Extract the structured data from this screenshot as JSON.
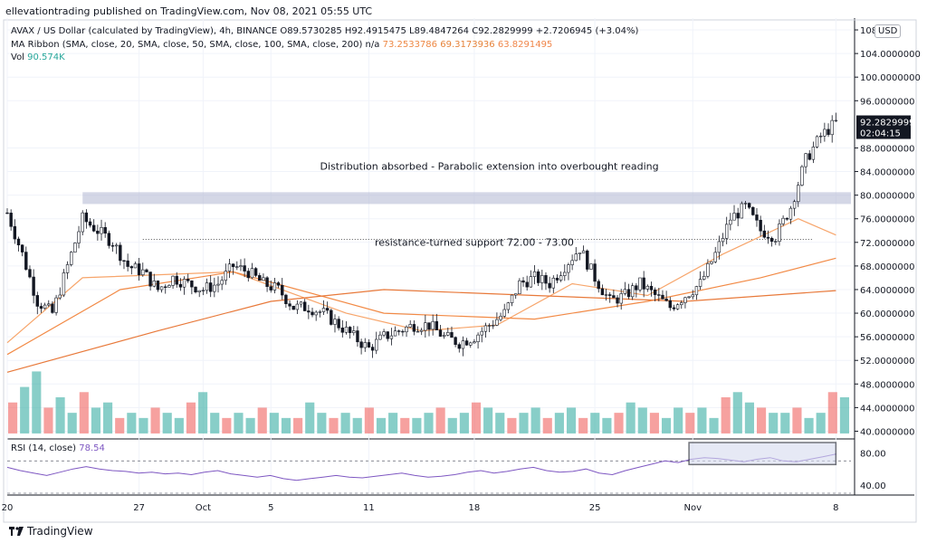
{
  "header": {
    "published_line": "ellevationtrading published on TradingView.com, Nov 08, 2021 05:55 UTC"
  },
  "legend": {
    "symbol_line": "AVAX / US Dollar (calculated by TradingView), 4h, BINANCE",
    "ohlc": "O89.5730285  H92.4915475  L89.4847264  C92.2829999  +2.7206945 (+3.04%)",
    "ma_label": "MA Ribbon (SMA, close, 20, SMA, close, 50, SMA, close, 100, SMA, close, 200)",
    "ma_na": "n/a",
    "ma_values": [
      "73.2533786",
      "69.3173936",
      "63.8291495"
    ],
    "vol_label": "Vol",
    "vol_value": "90.574K",
    "rsi_label": "RSI (14, close)",
    "rsi_value": "78.54"
  },
  "currency_button": "USD",
  "price_tag": {
    "price": "92.2829999",
    "countdown": "02:04:15"
  },
  "footer": {
    "brand": "TradingView"
  },
  "colors": {
    "up": "#26a69a",
    "down": "#ef5350",
    "candle": "#131722",
    "ma20": "#f7a56b",
    "ma50": "#f28a46",
    "ma100": "#e8793a",
    "zone": "#b7bdd6",
    "rsi": "#7e57c2",
    "grid": "#f0f3fa"
  },
  "chart_data": [
    {
      "type": "candlestick",
      "title": "AVAX / US Dollar, 4h",
      "ylim": [
        39,
        110
      ],
      "y_ticks": [
        "40.0000000",
        "44.0000000",
        "48.0000000",
        "52.0000000",
        "56.0000000",
        "60.0000000",
        "64.0000000",
        "68.0000000",
        "72.0000000",
        "76.0000000",
        "80.0000000",
        "84.0000000",
        "88.0000000",
        "96.0000000",
        "100.0000000",
        "104.0000000",
        "108"
      ],
      "x_ticks": [
        "20",
        "27",
        "Oct",
        "5",
        "11",
        "18",
        "25",
        "Nov",
        "8"
      ],
      "price_path": [
        [
          0,
          77
        ],
        [
          4,
          70
        ],
        [
          8,
          62
        ],
        [
          12,
          60
        ],
        [
          16,
          68
        ],
        [
          20,
          76
        ],
        [
          24,
          74
        ],
        [
          28,
          72
        ],
        [
          32,
          68
        ],
        [
          36,
          67
        ],
        [
          40,
          64
        ],
        [
          44,
          66
        ],
        [
          48,
          65
        ],
        [
          52,
          64
        ],
        [
          56,
          65
        ],
        [
          60,
          68
        ],
        [
          64,
          67
        ],
        [
          68,
          65
        ],
        [
          72,
          64
        ],
        [
          76,
          61
        ],
        [
          80,
          61
        ],
        [
          84,
          60
        ],
        [
          88,
          58
        ],
        [
          92,
          56
        ],
        [
          96,
          54
        ],
        [
          100,
          56
        ],
        [
          104,
          57
        ],
        [
          108,
          58
        ],
        [
          112,
          58
        ],
        [
          116,
          56
        ],
        [
          120,
          55
        ],
        [
          124,
          56
        ],
        [
          128,
          58
        ],
        [
          132,
          60
        ],
        [
          136,
          65
        ],
        [
          140,
          66
        ],
        [
          144,
          65
        ],
        [
          148,
          68
        ],
        [
          152,
          71
        ],
        [
          156,
          66
        ],
        [
          160,
          62
        ],
        [
          164,
          63
        ],
        [
          168,
          65
        ],
        [
          172,
          63
        ],
        [
          176,
          61
        ],
        [
          180,
          63
        ],
        [
          184,
          65
        ],
        [
          188,
          70
        ],
        [
          192,
          76
        ],
        [
          196,
          78
        ],
        [
          200,
          74
        ],
        [
          204,
          73
        ],
        [
          208,
          78
        ],
        [
          212,
          86
        ],
        [
          216,
          90
        ],
        [
          220,
          92.28
        ]
      ],
      "resistance_zone": [
        78.5,
        80.5
      ],
      "support_level": 72.5,
      "annotations": [
        "Distribution absorbed - Parabolic extension into overbought reading",
        "resistance-turned support 72.00 - 73.00"
      ],
      "ma_series": [
        {
          "name": "SMA 20",
          "points": [
            [
              0,
              55
            ],
            [
              20,
              66
            ],
            [
              60,
              67
            ],
            [
              90,
              60
            ],
            [
              110,
              57
            ],
            [
              130,
              58
            ],
            [
              150,
              65
            ],
            [
              170,
              63
            ],
            [
              190,
              70
            ],
            [
              210,
              76
            ],
            [
              220,
              73.25
            ]
          ]
        },
        {
          "name": "SMA 50",
          "points": [
            [
              0,
              53
            ],
            [
              30,
              64
            ],
            [
              60,
              67
            ],
            [
              100,
              60
            ],
            [
              140,
              59
            ],
            [
              170,
              62
            ],
            [
              200,
              66
            ],
            [
              220,
              69.32
            ]
          ]
        },
        {
          "name": "SMA 100",
          "points": [
            [
              0,
              50
            ],
            [
              40,
              57
            ],
            [
              70,
              62
            ],
            [
              100,
              64
            ],
            [
              140,
              63
            ],
            [
              180,
              62
            ],
            [
              220,
              63.83
            ]
          ]
        }
      ]
    },
    {
      "type": "bar",
      "title": "Vol",
      "values": [
        6,
        9,
        12,
        5,
        7,
        4,
        8,
        5,
        6,
        3,
        4,
        3,
        5,
        4,
        3,
        6,
        8,
        4,
        3,
        4,
        3,
        5,
        4,
        3,
        3,
        6,
        4,
        3,
        4,
        3,
        5,
        3,
        4,
        3,
        3,
        4,
        5,
        3,
        4,
        6,
        5,
        4,
        3,
        4,
        5,
        3,
        4,
        5,
        3,
        4,
        3,
        4,
        6,
        5,
        4,
        3,
        5,
        4,
        5,
        3,
        7,
        8,
        6,
        5,
        4,
        4,
        5,
        3,
        4,
        8,
        7
      ]
    },
    {
      "type": "line",
      "title": "RSI (14, close)",
      "ylim": [
        30,
        95
      ],
      "y_ticks": [
        "80.00",
        "40.00"
      ],
      "levels": [
        70,
        30
      ],
      "values": [
        62,
        58,
        55,
        52,
        56,
        60,
        63,
        60,
        58,
        57,
        55,
        56,
        54,
        55,
        53,
        56,
        58,
        54,
        52,
        50,
        52,
        48,
        46,
        48,
        50,
        52,
        50,
        49,
        51,
        53,
        55,
        52,
        50,
        51,
        53,
        56,
        58,
        55,
        57,
        60,
        62,
        58,
        56,
        57,
        60,
        55,
        53,
        58,
        62,
        66,
        70,
        68,
        72,
        74,
        73,
        71,
        69,
        72,
        74,
        70,
        69,
        72,
        75,
        78.54
      ]
    }
  ]
}
